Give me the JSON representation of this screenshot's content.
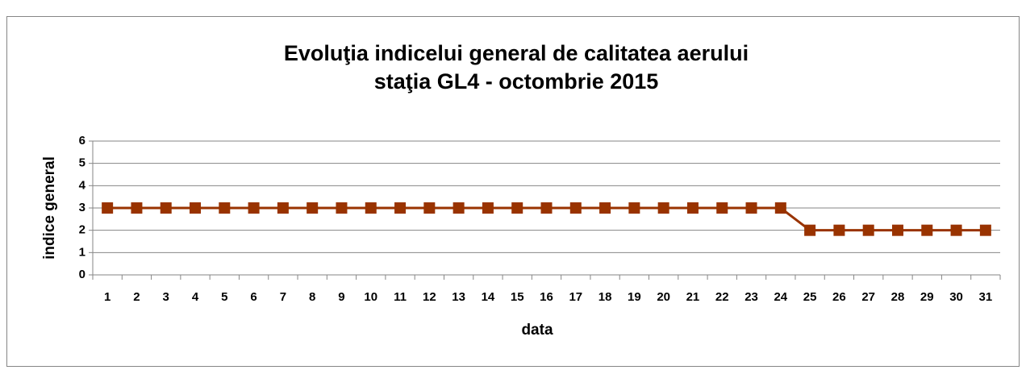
{
  "chart_data": {
    "type": "line",
    "title": [
      "Evoluţia indicelui general de calitatea aerului",
      "staţia GL4 - octombrie 2015"
    ],
    "x_label": "data",
    "y_label": "indice general",
    "categories": [
      "1",
      "2",
      "3",
      "4",
      "5",
      "6",
      "7",
      "8",
      "9",
      "10",
      "11",
      "12",
      "13",
      "14",
      "15",
      "16",
      "17",
      "18",
      "19",
      "20",
      "21",
      "22",
      "23",
      "24",
      "25",
      "26",
      "27",
      "28",
      "29",
      "30",
      "31"
    ],
    "values": [
      3,
      3,
      3,
      3,
      3,
      3,
      3,
      3,
      3,
      3,
      3,
      3,
      3,
      3,
      3,
      3,
      3,
      3,
      3,
      3,
      3,
      3,
      3,
      3,
      2,
      2,
      2,
      2,
      2,
      2,
      2
    ],
    "color": "#993300",
    "ylim": [
      0,
      6
    ],
    "yticks": [
      0,
      1,
      2,
      3,
      4,
      5,
      6
    ],
    "grid": true
  }
}
